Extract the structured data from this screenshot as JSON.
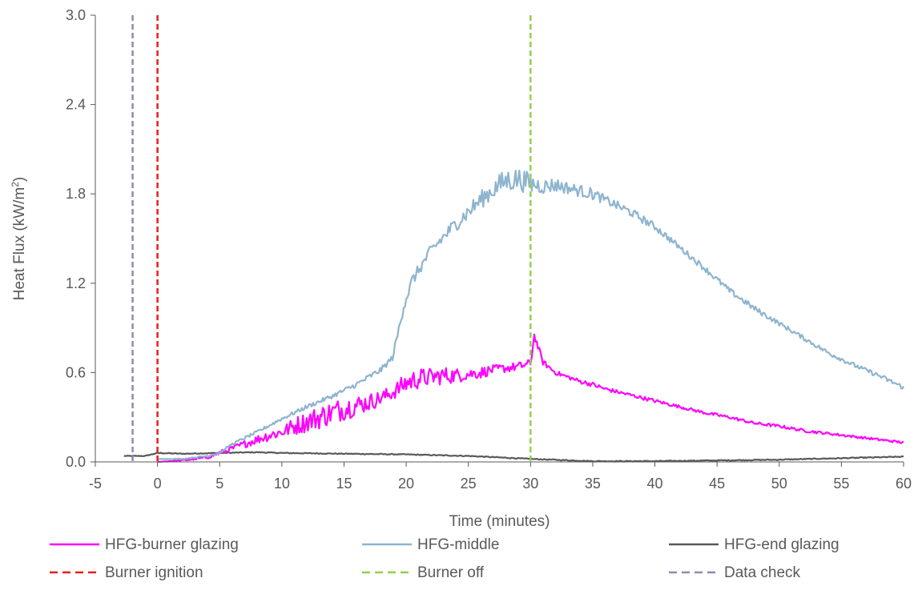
{
  "chart_data": {
    "type": "line",
    "xlabel": "Time (minutes)",
    "ylabel_main": "Heat Flux (kW/m",
    "ylabel_sup": "2",
    "ylabel_tail": ")",
    "xlim": [
      -5,
      60
    ],
    "ylim": [
      0,
      3
    ],
    "x_ticks": [
      -5,
      0,
      5,
      10,
      15,
      20,
      25,
      30,
      35,
      40,
      45,
      50,
      55,
      60
    ],
    "y_ticks": [
      0.0,
      0.6,
      1.2,
      1.8,
      2.4,
      3.0
    ],
    "x_tick_labels": [
      "-5",
      "0",
      "5",
      "10",
      "15",
      "20",
      "25",
      "30",
      "35",
      "40",
      "45",
      "50",
      "55",
      "60"
    ],
    "y_tick_labels": [
      "0.0",
      "0.6",
      "1.2",
      "1.8",
      "2.4",
      "3.0"
    ],
    "grid": false,
    "legend_position": "bottom",
    "series": [
      {
        "name": "HFG-burner glazing",
        "color": "#ff00ff",
        "style": "solid",
        "x": [
          0,
          2,
          4,
          5,
          6,
          7,
          8,
          9,
          10,
          11,
          12,
          13,
          14,
          15,
          16,
          17,
          18,
          19,
          20,
          21,
          22,
          23,
          24,
          25,
          26,
          27,
          28,
          29,
          30,
          30.3,
          31,
          32,
          33,
          34,
          35,
          36,
          37,
          38,
          39,
          40,
          42,
          44,
          46,
          48,
          50,
          52,
          54,
          56,
          58,
          60
        ],
        "y": [
          0.0,
          0.01,
          0.03,
          0.06,
          0.09,
          0.12,
          0.15,
          0.18,
          0.2,
          0.24,
          0.27,
          0.3,
          0.33,
          0.36,
          0.38,
          0.4,
          0.43,
          0.47,
          0.53,
          0.56,
          0.57,
          0.58,
          0.58,
          0.59,
          0.6,
          0.62,
          0.63,
          0.64,
          0.66,
          0.85,
          0.67,
          0.6,
          0.57,
          0.54,
          0.52,
          0.49,
          0.47,
          0.45,
          0.43,
          0.41,
          0.37,
          0.33,
          0.3,
          0.26,
          0.24,
          0.21,
          0.19,
          0.17,
          0.15,
          0.13
        ],
        "noise": [
          0,
          0.005,
          0.01,
          0.015,
          0.02,
          0.025,
          0.03,
          0.04,
          0.04,
          0.06,
          0.07,
          0.08,
          0.08,
          0.08,
          0.07,
          0.06,
          0.05,
          0.05,
          0.07,
          0.07,
          0.06,
          0.06,
          0.05,
          0.04,
          0.04,
          0.03,
          0.03,
          0.03,
          0.03,
          0.02,
          0.02,
          0.015,
          0.015,
          0.015,
          0.015,
          0.015,
          0.012,
          0.012,
          0.012,
          0.012,
          0.01,
          0.01,
          0.01,
          0.01,
          0.01,
          0.01,
          0.008,
          0.008,
          0.008,
          0.008
        ]
      },
      {
        "name": "HFG-middle",
        "color": "#8eb4cf",
        "style": "solid",
        "x": [
          0,
          2,
          4,
          5,
          6,
          8,
          10,
          12,
          14,
          16,
          17,
          18,
          18.9,
          19.3,
          19.8,
          20.5,
          22,
          24,
          26,
          27,
          28,
          29,
          30,
          31,
          32,
          33,
          34,
          35,
          36,
          37,
          38,
          40,
          42,
          44,
          46,
          48,
          50,
          52,
          54,
          56,
          58,
          60
        ],
        "y": [
          0.02,
          0.02,
          0.04,
          0.06,
          0.12,
          0.2,
          0.29,
          0.37,
          0.44,
          0.52,
          0.57,
          0.62,
          0.7,
          0.85,
          1.05,
          1.22,
          1.42,
          1.6,
          1.76,
          1.83,
          1.89,
          1.9,
          1.87,
          1.85,
          1.86,
          1.84,
          1.82,
          1.8,
          1.76,
          1.72,
          1.68,
          1.58,
          1.44,
          1.3,
          1.15,
          1.03,
          0.93,
          0.83,
          0.73,
          0.65,
          0.58,
          0.5
        ],
        "noise": [
          0,
          0.003,
          0.005,
          0.005,
          0.008,
          0.01,
          0.012,
          0.014,
          0.015,
          0.018,
          0.02,
          0.02,
          0.02,
          0.03,
          0.04,
          0.04,
          0.04,
          0.05,
          0.06,
          0.07,
          0.08,
          0.08,
          0.07,
          0.05,
          0.05,
          0.04,
          0.04,
          0.04,
          0.03,
          0.03,
          0.03,
          0.025,
          0.02,
          0.02,
          0.02,
          0.02,
          0.015,
          0.015,
          0.015,
          0.015,
          0.015,
          0.015
        ]
      },
      {
        "name": "HFG-end glazing",
        "color": "#595959",
        "style": "solid",
        "x": [
          -2.7,
          -2,
          -1,
          0,
          2,
          5,
          8,
          10,
          15,
          20,
          25,
          30,
          35,
          40,
          45,
          50,
          55,
          60
        ],
        "y": [
          0.04,
          0.04,
          0.04,
          0.06,
          0.055,
          0.06,
          0.065,
          0.06,
          0.055,
          0.05,
          0.04,
          0.02,
          0.005,
          0.005,
          0.01,
          0.015,
          0.025,
          0.035
        ],
        "noise": [
          0.002,
          0.002,
          0.002,
          0.003,
          0.003,
          0.003,
          0.003,
          0.003,
          0.003,
          0.003,
          0.003,
          0.003,
          0.003,
          0.003,
          0.003,
          0.003,
          0.003,
          0.003
        ]
      }
    ],
    "reference_lines": [
      {
        "name": "Burner ignition",
        "color": "#ee1c1c",
        "x": 0
      },
      {
        "name": "Burner off",
        "color": "#92d050",
        "x": 30
      },
      {
        "name": "Data check",
        "color": "#8c8cb0",
        "x": -2
      }
    ]
  }
}
